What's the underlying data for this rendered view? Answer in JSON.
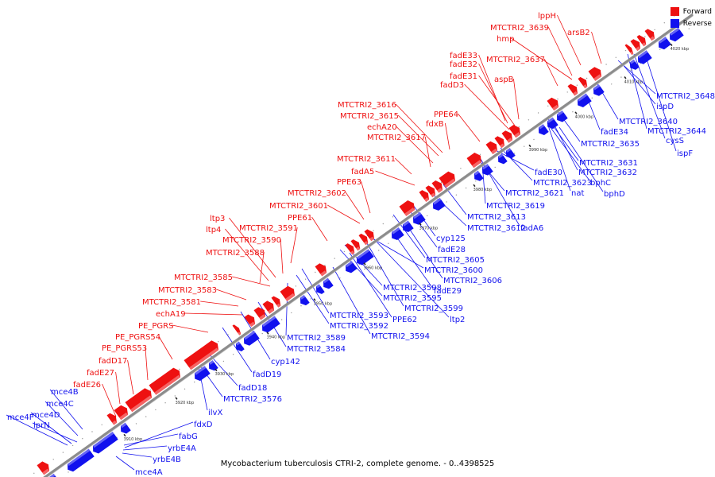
{
  "caption": "Mycobacterium tuberculosis CTRI-2, complete genome. - 0..4398525",
  "legend": [
    {
      "label": "Forward",
      "color": "#ee1111"
    },
    {
      "label": "Reverse",
      "color": "#1111ee"
    }
  ],
  "colors": {
    "forward": "#ee1111",
    "reverse": "#1111ee",
    "backbone": "#8c8c8c",
    "tickmark": "#222222"
  },
  "ticks": [
    "3910 kbp",
    "3920 kbp",
    "3930 kbp",
    "3940 kbp",
    "3950 kbp",
    "3960 kbp",
    "3970 kbp",
    "3980 kbp",
    "3990 kbp",
    "4000 kbp",
    "4010 kbp",
    "4020 kbp"
  ],
  "forward_labels": [
    "lppH",
    "MTCTRI2_3639",
    "arsB2",
    "hmp",
    "fadE33",
    "MTCTRI2_3637",
    "fadE32",
    "fadE31",
    "aspB",
    "fadD3",
    "MTCTRI2_3616",
    "PPE64",
    "MTCTRI2_3615",
    "fdxB",
    "echA20",
    "MTCTRI2_3617",
    "MTCTRI2_3611",
    "fadA5",
    "PPE63",
    "MTCTRI2_3602",
    "MTCTRI2_3601",
    "PPE61",
    "ltp3",
    "MTCTRI2_3591",
    "ltp4",
    "MTCTRI2_3590",
    "MTCTRI2_3588",
    "MTCTRI2_3585",
    "MTCTRI2_3583",
    "MTCTRI2_3581",
    "echA19",
    "PE_PGRS",
    "PE_PGRS54",
    "PE_PGRS53",
    "fadD17",
    "fadE27",
    "fadE26"
  ],
  "reverse_labels": [
    "MTCTRI2_3648",
    "ispD",
    "MTCTRI2_3640",
    "fadE34",
    "MTCTRI2_3644",
    "cysS",
    "ispF",
    "MTCTRI2_3635",
    "MTCTRI2_3631",
    "MTCTRI2_3632",
    "bphC",
    "fadE30",
    "MTCTRI2_3623",
    "nat",
    "bphD",
    "MTCTRI2_3621",
    "MTCTRI2_3619",
    "MTCTRI2_3613",
    "MTCTRI2_3612",
    "fadA6",
    "cyp125",
    "fadE28",
    "MTCTRI2_3605",
    "MTCTRI2_3600",
    "MTCTRI2_3606",
    "MTCTRI2_3598",
    "fadE29",
    "MTCTRI2_3595",
    "MTCTRI2_3599",
    "MTCTRI2_3593",
    "PPE62",
    "ltp2",
    "MTCTRI2_3592",
    "MTCTRI2_3594",
    "MTCTRI2_3589",
    "MTCTRI2_3584",
    "cyp142",
    "fadD19",
    "fadD18",
    "MTCTRI2_3576",
    "ilvX",
    "fdxD",
    "fabG",
    "yrbE4A",
    "yrbE4B",
    "mce4A",
    "mce4F",
    "mce4D",
    "lprN",
    "mce4C",
    "mce4B"
  ]
}
